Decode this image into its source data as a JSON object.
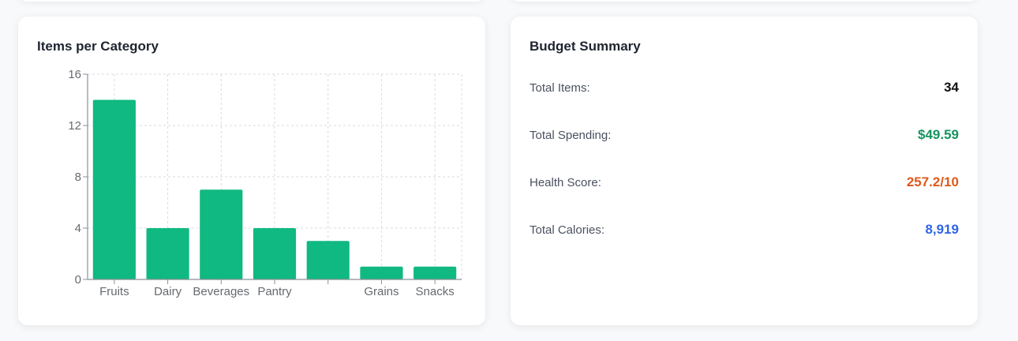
{
  "chart_card": {
    "title": "Items per Category"
  },
  "chart_data": {
    "type": "bar",
    "categories": [
      "Fruits",
      "Dairy",
      "Beverages",
      "Pantry",
      "",
      "Grains",
      "Snacks"
    ],
    "values": [
      14,
      4,
      7,
      4,
      3,
      1,
      1
    ],
    "ylim": [
      0,
      16
    ],
    "yticks": [
      0,
      4,
      8,
      12,
      16
    ],
    "grid": true,
    "bar_color": "#10b981"
  },
  "budget": {
    "title": "Budget Summary",
    "rows": [
      {
        "label": "Total Items:",
        "value": "34",
        "color": "#111111"
      },
      {
        "label": "Total Spending:",
        "value": "$49.59",
        "color": "#16935f"
      },
      {
        "label": "Health Score:",
        "value": "257.2/10",
        "color": "#e0591b"
      },
      {
        "label": "Total Calories:",
        "value": "8,919",
        "color": "#2f64e6"
      }
    ]
  }
}
